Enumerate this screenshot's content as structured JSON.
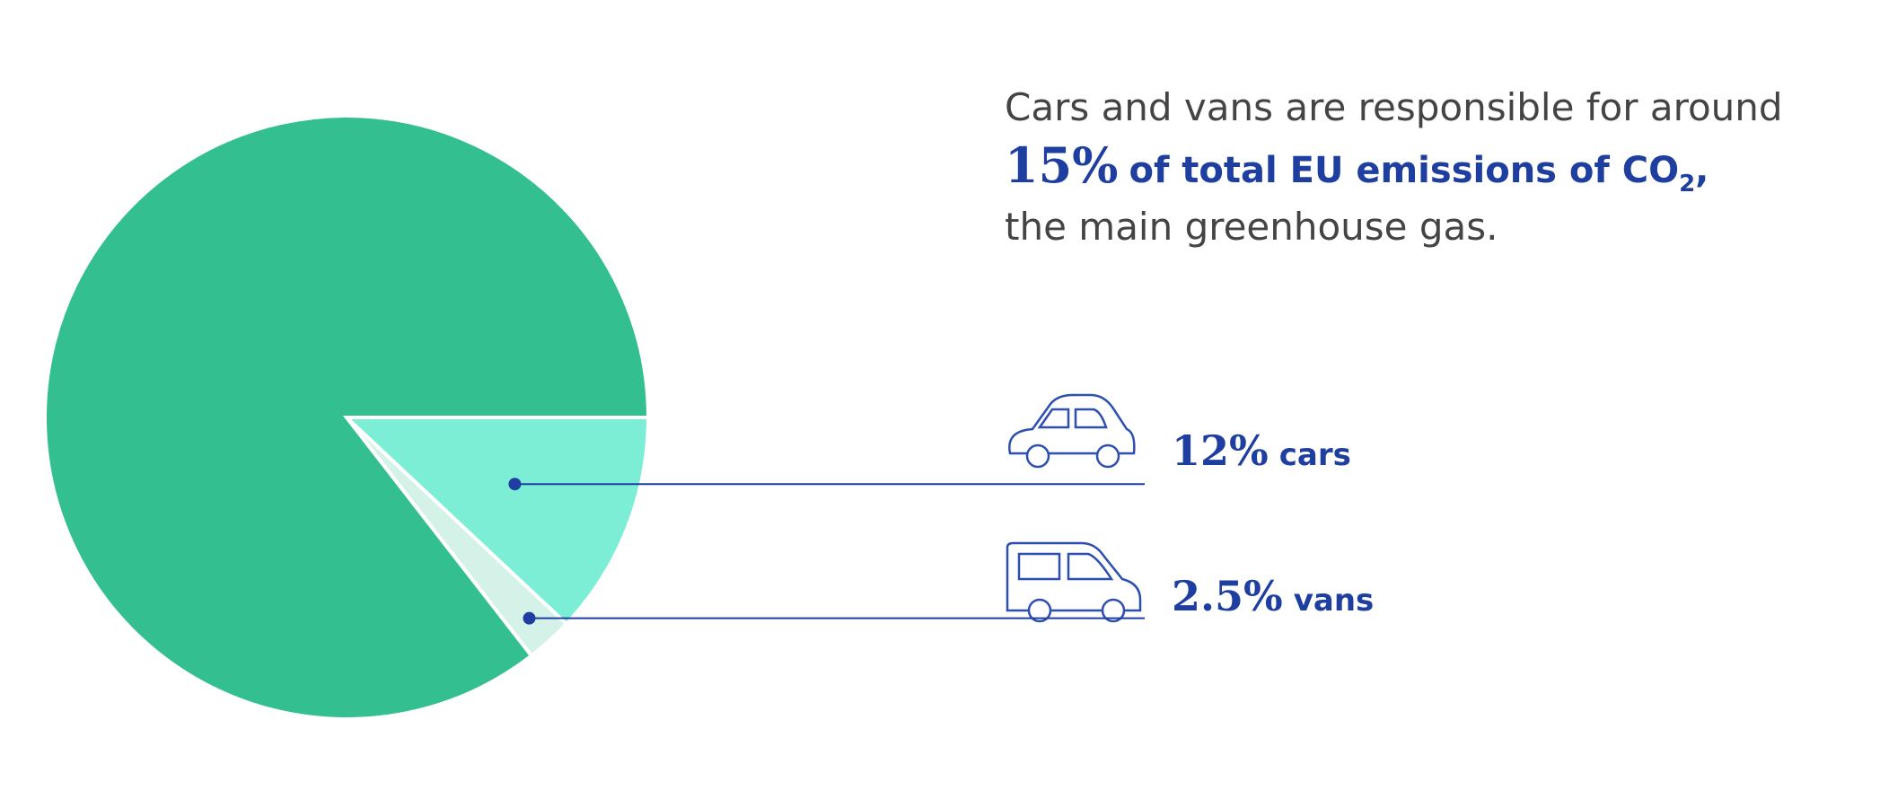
{
  "chart_data": {
    "type": "pie",
    "annotation": {
      "line1": "Cars and vans are responsible for around",
      "highlight_value": "15%",
      "highlight_text": "of total EU emissions of CO",
      "subscript": "2",
      "comma": ",",
      "line3": "the main greenhouse gas."
    },
    "categories": [
      "cars",
      "vans",
      null
    ],
    "values": [
      12,
      2.5,
      85.5
    ],
    "value_labels": [
      "12%",
      "2.5%",
      null
    ],
    "colors": [
      "#7ceed6",
      "#d4f2e8",
      "#33bf8f"
    ],
    "label_color": "#1f3fa0"
  }
}
